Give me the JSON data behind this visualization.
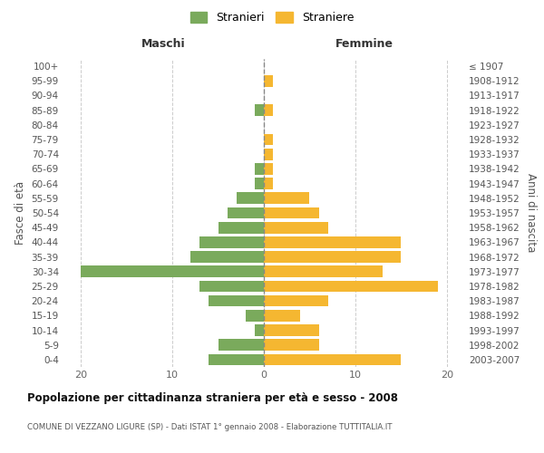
{
  "age_groups": [
    "100+",
    "95-99",
    "90-94",
    "85-89",
    "80-84",
    "75-79",
    "70-74",
    "65-69",
    "60-64",
    "55-59",
    "50-54",
    "45-49",
    "40-44",
    "35-39",
    "30-34",
    "25-29",
    "20-24",
    "15-19",
    "10-14",
    "5-9",
    "0-4"
  ],
  "birth_years": [
    "≤ 1907",
    "1908-1912",
    "1913-1917",
    "1918-1922",
    "1923-1927",
    "1928-1932",
    "1933-1937",
    "1938-1942",
    "1943-1947",
    "1948-1952",
    "1953-1957",
    "1958-1962",
    "1963-1967",
    "1968-1972",
    "1973-1977",
    "1978-1982",
    "1983-1987",
    "1988-1992",
    "1993-1997",
    "1998-2002",
    "2003-2007"
  ],
  "maschi": [
    0,
    0,
    0,
    1,
    0,
    0,
    0,
    1,
    1,
    3,
    4,
    5,
    7,
    8,
    20,
    7,
    6,
    2,
    1,
    5,
    6
  ],
  "femmine": [
    0,
    1,
    0,
    1,
    0,
    1,
    1,
    1,
    1,
    5,
    6,
    7,
    15,
    15,
    13,
    19,
    7,
    4,
    6,
    6,
    15
  ],
  "maschi_color": "#7aaa5c",
  "femmine_color": "#f5b731",
  "center_line_color": "#888888",
  "grid_color": "#cccccc",
  "title": "Popolazione per cittadinanza straniera per età e sesso - 2008",
  "subtitle": "COMUNE DI VEZZANO LIGURE (SP) - Dati ISTAT 1° gennaio 2008 - Elaborazione TUTTITALIA.IT",
  "ylabel_left": "Fasce di età",
  "ylabel_right": "Anni di nascita",
  "xlabel_left": "Maschi",
  "xlabel_right": "Femmine",
  "legend_maschi": "Stranieri",
  "legend_femmine": "Straniere",
  "xlim": 22,
  "background_color": "#ffffff"
}
